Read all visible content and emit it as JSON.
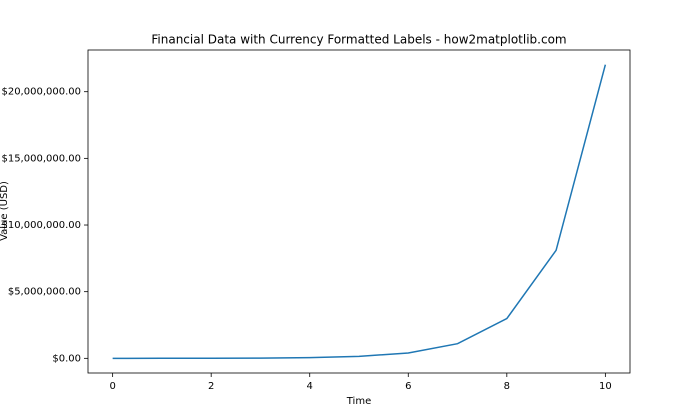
{
  "chart_data": {
    "type": "line",
    "title": "Financial Data with Currency Formatted Labels - how2matplotlib.com",
    "xlabel": "Time",
    "ylabel": "Value (USD)",
    "x": [
      0,
      1,
      2,
      3,
      4,
      5,
      6,
      7,
      8,
      9,
      10
    ],
    "series": [
      {
        "name": "Value",
        "color": "#1f77b4",
        "values": [
          1000,
          2718,
          7389,
          20086,
          54598,
          148413,
          403429,
          1096633,
          2980958,
          8103084,
          22026466
        ]
      }
    ],
    "xlim": [
      -0.5,
      10.5
    ],
    "xticks": [
      0,
      2,
      4,
      6,
      8,
      10
    ],
    "ylim": [
      -1100000,
      23128000
    ],
    "yticks": [
      {
        "value": 0,
        "label": "$0.00"
      },
      {
        "value": 5000000,
        "label": "$5,000,000.00"
      },
      {
        "value": 10000000,
        "label": "$10,000,000.00"
      },
      {
        "value": 15000000,
        "label": "$15,000,000.00"
      },
      {
        "value": 20000000,
        "label": "$20,000,000.00"
      }
    ],
    "grid": false
  }
}
